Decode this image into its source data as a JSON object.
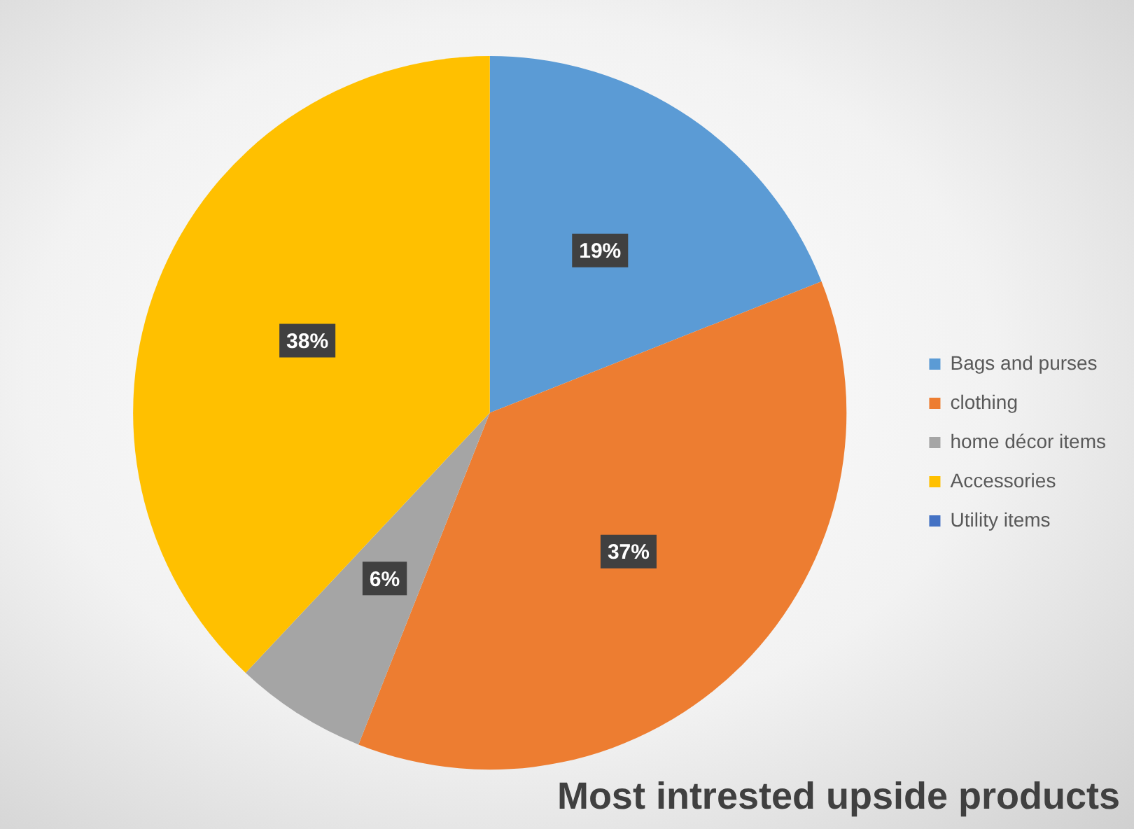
{
  "chart_data": {
    "type": "pie",
    "title": "Most intrested upside products",
    "categories": [
      "Bags and purses",
      "clothing",
      "home décor items",
      "Accessories",
      "Utility items"
    ],
    "values": [
      19,
      37,
      6,
      38,
      0
    ],
    "colors": [
      "#5b9bd5",
      "#ed7d31",
      "#a5a5a5",
      "#ffc000",
      "#4472c4"
    ],
    "value_labels": [
      "19%",
      "37%",
      "6%",
      "38%",
      null
    ],
    "legend": "right"
  }
}
